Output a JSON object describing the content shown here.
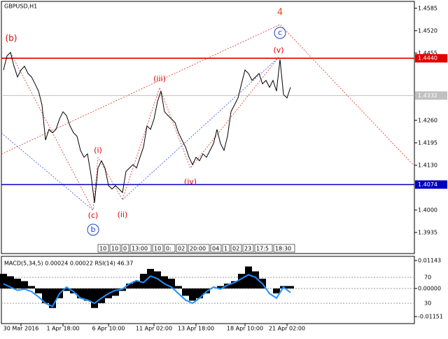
{
  "toolbar": [
    "10",
    "10",
    "0",
    "13:00",
    "10",
    "0:",
    "02",
    "20:00",
    "04",
    "1",
    "02",
    "23",
    "17:5",
    "18:30"
  ],
  "chart_data": [
    {
      "type": "line",
      "title": "GBPUSD,H1",
      "color": "#000000",
      "categories": [
        null,
        null,
        null,
        null,
        null,
        "30 Mar 2016",
        null,
        null,
        null,
        null,
        null,
        null,
        null,
        null,
        null,
        null,
        null,
        "1 Apr 18:00",
        null,
        null,
        null,
        null,
        null,
        null,
        null,
        null,
        null,
        null,
        null,
        null,
        "6 Apr 10:00",
        null,
        null,
        null,
        null,
        null,
        null,
        null,
        null,
        null,
        null,
        null,
        null,
        "11 Apr 02:00",
        null,
        null,
        null,
        null,
        null,
        null,
        null,
        null,
        null,
        null,
        null,
        "13 Apr 18:00",
        null,
        null,
        null,
        null,
        null,
        null,
        null,
        null,
        null,
        null,
        null,
        null,
        null,
        "18 Apr 10:00",
        null,
        null,
        null,
        null,
        null,
        null,
        null,
        null,
        null,
        null,
        null,
        "21 Apr 02:00",
        null
      ],
      "values": [
        1.4406,
        1.4447,
        1.4457,
        1.4417,
        1.4386,
        1.4406,
        1.4417,
        1.4396,
        1.4386,
        1.4366,
        1.4345,
        1.4305,
        1.4203,
        1.4234,
        1.4224,
        1.4234,
        1.4264,
        1.4285,
        1.4274,
        1.4244,
        1.4224,
        1.4214,
        1.4173,
        1.4153,
        1.4163,
        1.4102,
        1.4021,
        1.4122,
        1.4143,
        1.4122,
        1.4071,
        1.4061,
        1.4071,
        1.4061,
        1.4051,
        1.4112,
        1.4122,
        1.4132,
        1.4122,
        1.4153,
        1.4183,
        1.4244,
        1.4234,
        1.4264,
        1.4315,
        1.4345,
        1.4285,
        1.4274,
        1.4264,
        1.4254,
        1.4224,
        1.4203,
        1.4183,
        1.4153,
        1.4132,
        1.4153,
        1.4143,
        1.4163,
        1.4153,
        1.4173,
        1.4193,
        1.4234,
        1.4193,
        1.4173,
        1.4214,
        1.4285,
        1.4305,
        1.4325,
        1.4366,
        1.4406,
        1.4396,
        1.4376,
        1.4386,
        1.4396,
        1.4366,
        1.4376,
        1.4356,
        1.4376,
        1.4345,
        1.4437,
        1.4335,
        1.4325,
        1.4356
      ],
      "ylim": [
        1.3874,
        1.4609
      ],
      "yticks": [
        {
          "value": 1.4585,
          "label": "1.4585"
        },
        {
          "value": 1.452,
          "label": "1.4520"
        },
        {
          "value": 1.4455,
          "label": "1.4455"
        },
        {
          "value": 1.426,
          "label": "1.4260"
        },
        {
          "value": 1.4195,
          "label": "1.4195"
        },
        {
          "value": 1.413,
          "label": "1.4130"
        },
        {
          "value": 1.4,
          "label": "1.4000"
        },
        {
          "value": 1.3935,
          "label": "1.3935"
        }
      ],
      "hlines": [
        {
          "value": 1.444,
          "label": "1.4440",
          "color": "#e00000"
        },
        {
          "value": 1.4074,
          "label": "1.4074",
          "color": "#0000c0"
        },
        {
          "value": 1.4332,
          "label": "1.4332",
          "color": "#c0c0c0"
        }
      ],
      "annotations": [
        "4",
        "(b)",
        "c",
        "(v)",
        "(iii)",
        "(i)",
        "(iv)",
        "(c)",
        "(ii)",
        "b"
      ]
    },
    {
      "type": "macd",
      "title": "MACD(5,34,5) 0.00024 0.00022 RSI(14) 46.37",
      "series": [
        {
          "color": "#000000",
          "values": [
            0.006,
            0.005,
            0.004,
            0.003,
            0.001,
            -0.002,
            -0.006,
            -0.008,
            -0.004,
            -0.001,
            -0.002,
            -0.004,
            -0.005,
            -0.008,
            -0.006,
            -0.004,
            -0.003,
            -0.001,
            0.002,
            0.003,
            0.006,
            0.008,
            0.007,
            0.005,
            0.004,
            0.001,
            -0.003,
            -0.005,
            -0.004,
            -0.002,
            0,
            0.001,
            0.002,
            0.003,
            0.006,
            0.009,
            0.007,
            0.004,
            0,
            -0.002,
            0.001,
            0.001
          ]
        },
        {
          "color": "#1e90ff",
          "axis": "y2",
          "values": [
            60,
            55,
            50,
            52,
            48,
            40,
            30,
            25,
            45,
            55,
            48,
            38,
            35,
            30,
            38,
            45,
            50,
            52,
            60,
            65,
            62,
            72,
            68,
            60,
            55,
            45,
            35,
            30,
            38,
            48,
            55,
            52,
            58,
            62,
            68,
            74,
            70,
            60,
            45,
            38,
            55,
            46.37
          ]
        }
      ],
      "ylim": [
        -0.01438,
        0.01315
      ],
      "yticks": [
        {
          "value": 0.01143,
          "label": "0.01143"
        },
        {
          "value": 0,
          "label": "0.00000"
        },
        {
          "value": -0.01151,
          "label": "-0.01151"
        }
      ],
      "y2lim": [
        -1.35,
        102.4
      ],
      "y2ticks": [
        70,
        30
      ]
    }
  ]
}
